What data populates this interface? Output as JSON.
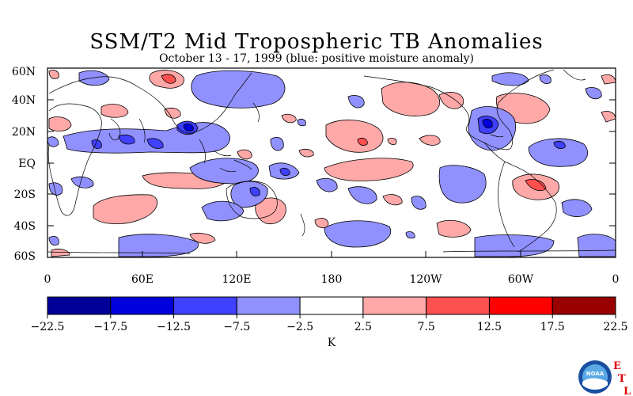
{
  "title": "SSM/T2 Mid Tropospheric TB Anomalies",
  "subtitle": "October 13 - 17, 1999 (blue: positive moisture anomaly)",
  "lat_labels": [
    "60N",
    "40N",
    "20N",
    "EQ",
    "20S",
    "40S",
    "60S"
  ],
  "lon_labels": [
    "0",
    "60E",
    "120E",
    "180",
    "120W",
    "60W",
    "0"
  ],
  "colorbar": {
    "ticks": [
      "-22.5",
      "-17.5",
      "-12.5",
      "-7.5",
      "-2.5",
      "2.5",
      "7.5",
      "12.5",
      "17.5",
      "22.5"
    ],
    "colors": [
      "#000099",
      "#0000dd",
      "#4040ff",
      "#9090ff",
      "#ffffff",
      "#ffa8a8",
      "#ff5050",
      "#ff0000",
      "#990000"
    ],
    "unit": "K"
  },
  "logos": {
    "noaa": "NOAA",
    "etl": [
      "E",
      "T",
      "L"
    ]
  }
}
